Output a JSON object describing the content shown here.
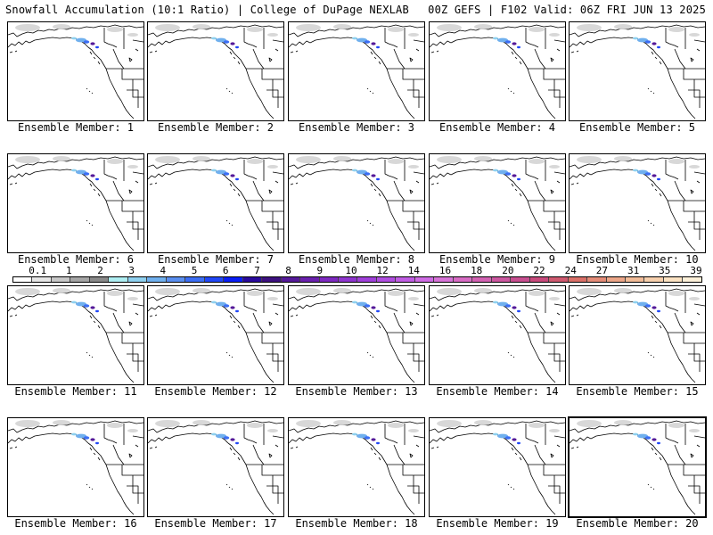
{
  "header": {
    "left_title": "Snowfall Accumulation (10:1 Ratio) | College of DuPage NEXLAB",
    "right_title": "00Z GEFS | F102 Valid: 06Z FRI JUN 13 2025"
  },
  "panels": [
    {
      "label": "Ensemble Member: 1"
    },
    {
      "label": "Ensemble Member: 2"
    },
    {
      "label": "Ensemble Member: 3"
    },
    {
      "label": "Ensemble Member: 4"
    },
    {
      "label": "Ensemble Member: 5"
    },
    {
      "label": "Ensemble Member: 6"
    },
    {
      "label": "Ensemble Member: 7"
    },
    {
      "label": "Ensemble Member: 8"
    },
    {
      "label": "Ensemble Member: 9"
    },
    {
      "label": "Ensemble Member: 10"
    },
    {
      "label": "Ensemble Member: 11"
    },
    {
      "label": "Ensemble Member: 12"
    },
    {
      "label": "Ensemble Member: 13"
    },
    {
      "label": "Ensemble Member: 14"
    },
    {
      "label": "Ensemble Member: 15"
    },
    {
      "label": "Ensemble Member: 16"
    },
    {
      "label": "Ensemble Member: 17"
    },
    {
      "label": "Ensemble Member: 18"
    },
    {
      "label": "Ensemble Member: 19"
    },
    {
      "label": "Ensemble Member: 20",
      "selected": true
    }
  ],
  "colorbar": {
    "tick_labels": [
      "0.1",
      "1",
      "2",
      "3",
      "4",
      "5",
      "6",
      "7",
      "8",
      "9",
      "10",
      "12",
      "14",
      "16",
      "18",
      "20",
      "22",
      "24",
      "27",
      "31",
      "35",
      "39"
    ],
    "colors": [
      "#ffffff",
      "#e6e6e6",
      "#c8c8c8",
      "#a6a6a6",
      "#8a8a8a",
      "#aeeef2",
      "#8fd1f0",
      "#70b0ee",
      "#5a8ff0",
      "#3c6ef4",
      "#2147f6",
      "#0a1ef4",
      "#2a0a9c",
      "#3d117f",
      "#551a99",
      "#6a20ad",
      "#7e2ac0",
      "#8f35cf",
      "#a040da",
      "#b04ee0",
      "#c05de3",
      "#cf6ce4",
      "#d774d8",
      "#d86cc4",
      "#d262b2",
      "#cc58a0",
      "#c84f90",
      "#c84a7c",
      "#cf5a70",
      "#da7068",
      "#e48c78",
      "#eca688",
      "#f2bc98",
      "#f7d0ad",
      "#fbe2c2",
      "#fdf1da"
    ]
  },
  "colors": {
    "coast": "#000000",
    "snow_light": "#c8c8c8",
    "snow_blue": "#3c6ef4",
    "snow_purple": "#551a99"
  }
}
